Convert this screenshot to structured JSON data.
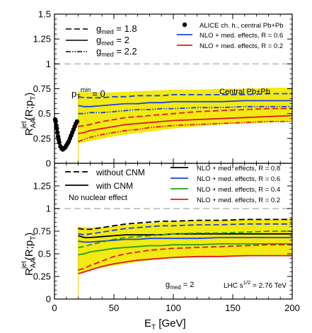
{
  "chart_data": [
    {
      "type": "line",
      "panel": "top",
      "ylabel": "R_AA^jet(R;p_T)",
      "ylim": [
        0,
        1.5
      ],
      "xlim": [
        0,
        200
      ],
      "yticks": [
        0,
        0.25,
        0.5,
        0.75,
        1,
        1.25,
        1.5
      ],
      "ytick_labels": [
        "0",
        "0.25",
        "0.5",
        "0.75",
        "1",
        "1.25",
        "1.5"
      ],
      "grid": false,
      "reference_line": 1,
      "annotations": {
        "ptmin_main": "p",
        "ptmin_sub": "T",
        "ptmin_sup": "min",
        "ptmin_val": "= 0",
        "system": "Central Pb+Pb"
      },
      "style_legend": [
        {
          "label_pre": "g",
          "label_sub": "med",
          "label_post": " = 1.8",
          "dash": "dashed"
        },
        {
          "label_pre": "g",
          "label_sub": "med",
          "label_post": " = 2",
          "dash": "solid"
        },
        {
          "label_pre": "g",
          "label_sub": "med",
          "label_post": " = 2.2",
          "dash": "dashdotdot"
        }
      ],
      "series_legend": [
        {
          "label": "ALICE ch. h., central Pb+Pb",
          "marker": "circle",
          "color": "#000000"
        },
        {
          "label": "NLO + med. effects, R = 0.6",
          "color": "#1f3fe0"
        },
        {
          "label": "NLO + med. effects, R = 0.2",
          "color": "#e01818"
        }
      ],
      "band": {
        "color": "#f5f000",
        "x": [
          20,
          40,
          60,
          80,
          100,
          120,
          140,
          160,
          180,
          200
        ],
        "lower": [
          0.2,
          0.25,
          0.29,
          0.32,
          0.35,
          0.37,
          0.39,
          0.4,
          0.41,
          0.42
        ],
        "upper": [
          0.72,
          0.71,
          0.72,
          0.73,
          0.74,
          0.74,
          0.75,
          0.75,
          0.76,
          0.76
        ]
      },
      "points": {
        "name": "ALICE ch. h., central Pb+Pb",
        "x": [
          0.6,
          1,
          1.5,
          2,
          2.5,
          3,
          3.5,
          4,
          5,
          6,
          7,
          8,
          9,
          10,
          11,
          12,
          13,
          14,
          15,
          16,
          17,
          18,
          19
        ],
        "y": [
          0.44,
          0.42,
          0.38,
          0.35,
          0.31,
          0.27,
          0.24,
          0.21,
          0.17,
          0.15,
          0.14,
          0.15,
          0.16,
          0.18,
          0.2,
          0.22,
          0.25,
          0.28,
          0.31,
          0.34,
          0.37,
          0.4,
          0.42
        ]
      },
      "series": [
        {
          "name": "NLO + med. effects, R = 0.6",
          "color": "#1f3fe0",
          "dash": "dashed",
          "x": [
            20,
            25,
            30,
            40,
            50,
            60,
            70,
            80,
            90,
            100,
            120,
            140,
            160,
            180,
            200
          ],
          "y": [
            0.67,
            0.66,
            0.66,
            0.66,
            0.67,
            0.67,
            0.68,
            0.68,
            0.68,
            0.69,
            0.69,
            0.69,
            0.69,
            0.7,
            0.7
          ]
        },
        {
          "name": "NLO + med. effects, R = 0.6",
          "color": "#1f3fe0",
          "dash": "solid",
          "x": [
            20,
            25,
            30,
            40,
            50,
            60,
            70,
            80,
            90,
            100,
            120,
            140,
            160,
            180,
            200
          ],
          "y": [
            0.58,
            0.57,
            0.57,
            0.58,
            0.59,
            0.6,
            0.6,
            0.61,
            0.61,
            0.62,
            0.62,
            0.62,
            0.63,
            0.63,
            0.63
          ]
        },
        {
          "name": "NLO + med. effects, R = 0.6",
          "color": "#1f3fe0",
          "dash": "dashdotdot",
          "x": [
            20,
            25,
            30,
            40,
            50,
            60,
            70,
            80,
            90,
            100,
            120,
            140,
            160,
            180,
            200
          ],
          "y": [
            0.5,
            0.5,
            0.51,
            0.51,
            0.52,
            0.53,
            0.54,
            0.54,
            0.55,
            0.55,
            0.56,
            0.56,
            0.57,
            0.57,
            0.57
          ]
        },
        {
          "name": "NLO + med. effects, R = 0.2",
          "color": "#e01818",
          "dash": "dashed",
          "x": [
            20,
            25,
            30,
            40,
            50,
            60,
            70,
            80,
            90,
            100,
            120,
            140,
            160,
            180,
            200
          ],
          "y": [
            0.37,
            0.38,
            0.39,
            0.42,
            0.44,
            0.46,
            0.47,
            0.48,
            0.49,
            0.5,
            0.52,
            0.53,
            0.54,
            0.55,
            0.55
          ]
        },
        {
          "name": "NLO + med. effects, R = 0.2",
          "color": "#e01818",
          "dash": "solid",
          "x": [
            20,
            25,
            30,
            40,
            50,
            60,
            70,
            80,
            90,
            100,
            120,
            140,
            160,
            180,
            200
          ],
          "y": [
            0.3,
            0.31,
            0.33,
            0.35,
            0.37,
            0.39,
            0.4,
            0.41,
            0.42,
            0.43,
            0.44,
            0.45,
            0.46,
            0.47,
            0.48
          ]
        },
        {
          "name": "NLO + med. effects, R = 0.2",
          "color": "#e01818",
          "dash": "dashdotdot",
          "x": [
            20,
            25,
            30,
            40,
            50,
            60,
            70,
            80,
            90,
            100,
            120,
            140,
            160,
            180,
            200
          ],
          "y": [
            0.22,
            0.24,
            0.26,
            0.29,
            0.31,
            0.33,
            0.34,
            0.36,
            0.37,
            0.38,
            0.39,
            0.4,
            0.41,
            0.42,
            0.42
          ]
        }
      ]
    },
    {
      "type": "line",
      "panel": "bottom",
      "xlabel": "E_T [GeV]",
      "ylabel": "R_AA^jet(R;p_T)",
      "ylim": [
        0,
        1.5
      ],
      "xlim": [
        0,
        200
      ],
      "xticks": [
        0,
        50,
        100,
        150,
        200
      ],
      "xtick_labels": [
        "0",
        "50",
        "100",
        "150",
        "200"
      ],
      "yticks": [
        0,
        0.25,
        0.5,
        0.75,
        1,
        1.25
      ],
      "ytick_labels": [
        "0",
        "0.25",
        "0.5",
        "0.75",
        "1",
        "1.25"
      ],
      "grid": false,
      "reference_line": 1,
      "annotations": {
        "no_effect": "No nuclear effect",
        "gmed_pre": "g",
        "gmed_sub": "med",
        "gmed_post": " = 2",
        "lhc_pre": "LHC s",
        "lhc_sup": "1/2",
        "lhc_post": " = 2.76 TeV"
      },
      "style_legend": [
        {
          "label": "without CNM",
          "dash": "dashed"
        },
        {
          "label": "with CNM",
          "dash": "solid"
        }
      ],
      "series_legend": [
        {
          "label": "NLO + med. effects, R = 0.8",
          "color": "#000000"
        },
        {
          "label": "NLO + med. effects, R = 0.6",
          "color": "#1f3fe0"
        },
        {
          "label": "NLO + med. effects, R = 0.4",
          "color": "#20a020"
        },
        {
          "label": "NLO + med. effects, R = 0.2",
          "color": "#e01818"
        }
      ],
      "band": {
        "color": "#f5f000",
        "x": [
          20,
          40,
          60,
          80,
          100,
          120,
          140,
          160,
          180,
          200
        ],
        "lower": [
          0.28,
          0.35,
          0.39,
          0.43,
          0.45,
          0.46,
          0.47,
          0.47,
          0.48,
          0.48
        ],
        "upper": [
          0.8,
          0.79,
          0.82,
          0.84,
          0.86,
          0.87,
          0.87,
          0.88,
          0.88,
          0.89
        ]
      },
      "series": [
        {
          "name": "NLO + med. effects, R = 0.8",
          "color": "#000000",
          "dash": "dashed",
          "x": [
            20,
            25,
            30,
            40,
            50,
            60,
            70,
            80,
            90,
            100,
            120,
            140,
            160,
            180,
            200
          ],
          "y": [
            0.78,
            0.77,
            0.77,
            0.79,
            0.81,
            0.83,
            0.84,
            0.85,
            0.86,
            0.86,
            0.87,
            0.87,
            0.88,
            0.88,
            0.88
          ]
        },
        {
          "name": "NLO + med. effects, R = 0.8",
          "color": "#000000",
          "dash": "solid",
          "x": [
            20,
            25,
            30,
            40,
            50,
            60,
            70,
            80,
            90,
            100,
            120,
            140,
            160,
            180,
            200
          ],
          "y": [
            0.7,
            0.68,
            0.68,
            0.69,
            0.7,
            0.71,
            0.71,
            0.71,
            0.71,
            0.72,
            0.72,
            0.72,
            0.72,
            0.72,
            0.72
          ]
        },
        {
          "name": "NLO + med. effects, R = 0.6",
          "color": "#1f3fe0",
          "dash": "dashed",
          "x": [
            20,
            25,
            30,
            40,
            50,
            60,
            70,
            80,
            90,
            100,
            120,
            140,
            160,
            180,
            200
          ],
          "y": [
            0.72,
            0.71,
            0.72,
            0.74,
            0.76,
            0.78,
            0.79,
            0.8,
            0.81,
            0.81,
            0.82,
            0.82,
            0.83,
            0.83,
            0.83
          ]
        },
        {
          "name": "NLO + med. effects, R = 0.6",
          "color": "#1f3fe0",
          "dash": "solid",
          "x": [
            20,
            25,
            30,
            40,
            50,
            60,
            70,
            80,
            90,
            100,
            120,
            140,
            160,
            180,
            200
          ],
          "y": [
            0.64,
            0.63,
            0.63,
            0.64,
            0.65,
            0.66,
            0.66,
            0.67,
            0.67,
            0.67,
            0.67,
            0.68,
            0.68,
            0.68,
            0.68
          ]
        },
        {
          "name": "NLO + med. effects, R = 0.4",
          "color": "#20a020",
          "dash": "dashed",
          "x": [
            20,
            25,
            30,
            40,
            50,
            60,
            70,
            80,
            90,
            100,
            120,
            140,
            160,
            180,
            200
          ],
          "y": [
            0.57,
            0.58,
            0.6,
            0.63,
            0.66,
            0.68,
            0.69,
            0.7,
            0.71,
            0.72,
            0.73,
            0.73,
            0.74,
            0.75,
            0.75
          ]
        },
        {
          "name": "NLO + med. effects, R = 0.4",
          "color": "#20a020",
          "dash": "solid",
          "x": [
            20,
            25,
            30,
            40,
            50,
            60,
            70,
            80,
            90,
            100,
            120,
            140,
            160,
            180,
            200
          ],
          "y": [
            0.49,
            0.5,
            0.52,
            0.54,
            0.56,
            0.57,
            0.58,
            0.59,
            0.59,
            0.6,
            0.6,
            0.61,
            0.61,
            0.61,
            0.61
          ]
        },
        {
          "name": "NLO + med. effects, R = 0.2",
          "color": "#e01818",
          "dash": "dashed",
          "x": [
            20,
            25,
            30,
            40,
            50,
            60,
            70,
            80,
            90,
            100,
            120,
            140,
            160,
            180,
            200
          ],
          "y": [
            0.32,
            0.34,
            0.37,
            0.42,
            0.47,
            0.5,
            0.52,
            0.54,
            0.55,
            0.56,
            0.57,
            0.58,
            0.59,
            0.6,
            0.6
          ]
        },
        {
          "name": "NLO + med. effects, R = 0.2",
          "color": "#e01818",
          "dash": "solid",
          "x": [
            20,
            25,
            30,
            40,
            50,
            60,
            70,
            80,
            90,
            100,
            120,
            140,
            160,
            180,
            200
          ],
          "y": [
            0.28,
            0.3,
            0.32,
            0.36,
            0.39,
            0.41,
            0.43,
            0.44,
            0.45,
            0.46,
            0.47,
            0.47,
            0.48,
            0.48,
            0.48
          ]
        }
      ]
    }
  ],
  "axis_label_parts": {
    "y_main": "R",
    "y_sub": "AA",
    "y_sup": "jet",
    "y_rest": "(R;p",
    "y_rest_sub": "T",
    "y_close": ")",
    "x_main": "E",
    "x_sub": "T",
    "x_rest": " [GeV]"
  }
}
